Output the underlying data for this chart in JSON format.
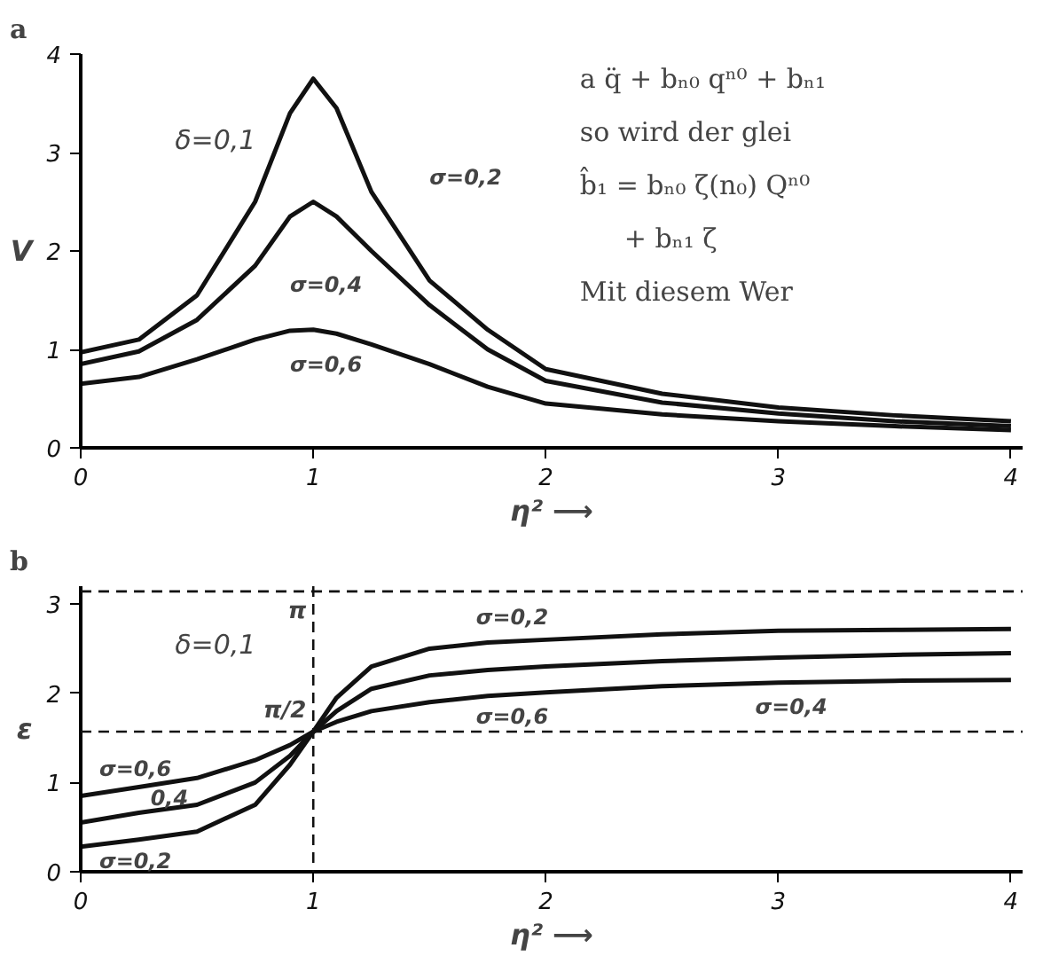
{
  "chart_data": [
    {
      "type": "line",
      "title": "a",
      "xlabel": "η² ⟶",
      "ylabel": "V",
      "x": [
        0,
        0.25,
        0.5,
        0.75,
        0.9,
        1.0,
        1.1,
        1.25,
        1.5,
        1.75,
        2,
        2.5,
        3,
        3.5,
        4
      ],
      "series": [
        {
          "color": "#111111",
          "values": [
            0.97,
            1.1,
            1.55,
            2.5,
            3.4,
            3.75,
            3.45,
            2.6,
            1.7,
            1.2,
            0.8,
            0.55,
            0.41,
            0.33,
            0.27
          ]
        },
        {
          "color": "#111111",
          "values": [
            0.85,
            0.98,
            1.3,
            1.85,
            2.35,
            2.5,
            2.35,
            2.0,
            1.45,
            1.0,
            0.68,
            0.46,
            0.35,
            0.27,
            0.22
          ]
        },
        {
          "color": "#111111",
          "values": [
            0.65,
            0.72,
            0.9,
            1.1,
            1.19,
            1.2,
            1.16,
            1.05,
            0.85,
            0.62,
            0.45,
            0.34,
            0.27,
            0.22,
            0.18
          ]
        }
      ],
      "xlim": [
        0,
        4.05
      ],
      "ylim": [
        0,
        4
      ],
      "xticks": [
        0,
        1,
        2,
        3,
        4
      ],
      "yticks": [
        0,
        1,
        2,
        3,
        4
      ],
      "grid": false,
      "marker": "none",
      "line_style": "solid",
      "annotations": [
        "δ=0,1",
        "a q̈ + bₙ₀ qⁿ⁰ + bₙ₁",
        "so wird der glei",
        "b̂₁ = bₙ₀ ζ(n₀) Qⁿ⁰",
        "+ bₙ₁ ζ",
        "Mit diesem Wer",
        "σ=0,2",
        "σ=0,4",
        "σ=0,6"
      ]
    },
    {
      "type": "line",
      "title": "b",
      "xlabel": "η² ⟶",
      "ylabel": "ε",
      "x": [
        0,
        0.25,
        0.5,
        0.75,
        0.9,
        1.0,
        1.1,
        1.25,
        1.5,
        1.75,
        2,
        2.5,
        3,
        3.5,
        4
      ],
      "series": [
        {
          "color": "#111111",
          "values": [
            0.28,
            0.36,
            0.45,
            0.75,
            1.2,
            1.57,
            1.95,
            2.3,
            2.5,
            2.57,
            2.6,
            2.66,
            2.7,
            2.71,
            2.72
          ]
        },
        {
          "color": "#111111",
          "values": [
            0.55,
            0.66,
            0.75,
            1.0,
            1.3,
            1.57,
            1.8,
            2.05,
            2.2,
            2.26,
            2.3,
            2.36,
            2.4,
            2.43,
            2.45
          ]
        },
        {
          "color": "#111111",
          "values": [
            0.85,
            0.95,
            1.05,
            1.25,
            1.42,
            1.57,
            1.68,
            1.8,
            1.9,
            1.97,
            2.01,
            2.08,
            2.12,
            2.14,
            2.15
          ]
        }
      ],
      "xlim": [
        0,
        4.05
      ],
      "ylim": [
        0,
        3.2
      ],
      "xticks": [
        0,
        1,
        2,
        3,
        4
      ],
      "yticks": [
        0,
        1,
        2,
        3
      ],
      "grid": false,
      "marker": "none",
      "line_style": "solid",
      "ref_lines": [
        {
          "axis": "y",
          "value": 3.1416,
          "line_style": "dashed"
        },
        {
          "axis": "y",
          "value": 1.5708,
          "line_style": "dashed"
        },
        {
          "axis": "x",
          "value": 1,
          "line_style": "dashed"
        }
      ],
      "annotations": [
        "δ=0,1",
        {
          "text": "π",
          "x": 1,
          "y": 3.1416
        },
        {
          "text": "π/2",
          "x": 1,
          "y": 1.5708
        },
        "σ=0,6",
        "0,4",
        "σ=0,2",
        "σ=0,2",
        "σ=0,6",
        "σ=0,4"
      ]
    }
  ]
}
